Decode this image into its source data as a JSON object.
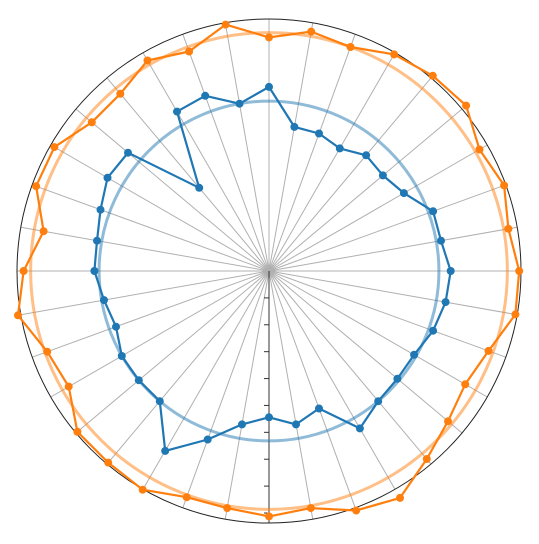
{
  "chart_data": {
    "type": "polar",
    "spokes": 36,
    "grid": true,
    "radial_axis": {
      "min": 0,
      "max": 1,
      "ticks": 9,
      "direction": "down"
    },
    "colors": {
      "series1": "#1f77b4",
      "series2": "#ff7f0e"
    },
    "series": [
      {
        "values": [
          0.78,
          0.62,
          0.62,
          0.6,
          0.64,
          0.63,
          0.66,
          0.74,
          0.74,
          0.77,
          0.76,
          0.74,
          0.71,
          0.71,
          0.72,
          0.77,
          0.62,
          0.66,
          0.62,
          0.66,
          0.76,
          0.88,
          0.72,
          0.72,
          0.72,
          0.69,
          0.71,
          0.74,
          0.74,
          0.76,
          0.79,
          0.78,
          0.46,
          0.78,
          0.79,
          0.72
        ]
      },
      {
        "values": [
          0.99,
          1.03,
          1.01,
          1.06,
          1.08,
          1.09,
          1.03,
          1.06,
          1.03,
          1.06,
          1.06,
          0.99,
          0.96,
          0.99,
          1.04,
          1.11,
          1.08,
          1.02,
          1.04,
          1.02,
          1.02,
          1.07,
          1.06,
          1.06,
          0.98,
          1.0,
          1.08,
          1.04,
          0.97,
          1.05,
          1.05,
          0.98,
          0.98,
          1.03,
          0.99,
          1.06
        ]
      }
    ],
    "reference_circles": [
      0.72,
      1.01
    ]
  }
}
